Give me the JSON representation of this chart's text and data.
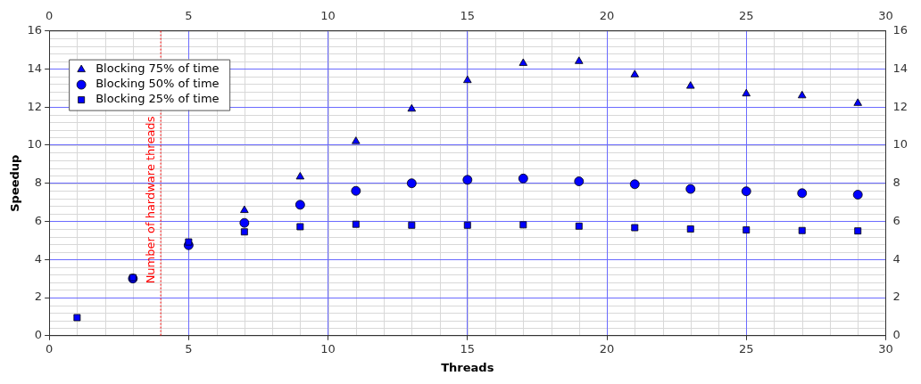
{
  "chart_data": {
    "type": "scatter",
    "xlabel": "Threads",
    "ylabel": "Speedup",
    "x": [
      1,
      3,
      5,
      7,
      9,
      11,
      13,
      15,
      17,
      19,
      21,
      23,
      25,
      27,
      29
    ],
    "xlim": [
      0,
      30
    ],
    "xticks": [
      0,
      5,
      10,
      15,
      20,
      25,
      30
    ],
    "x2lim": [
      0,
      30
    ],
    "x2ticks": [
      0,
      5,
      10,
      15,
      20,
      25,
      30
    ],
    "ylim": [
      0,
      16
    ],
    "yticks": [
      0,
      2,
      4,
      6,
      8,
      10,
      12,
      14,
      16
    ],
    "y2lim": [
      0,
      16
    ],
    "y2ticks": [
      0,
      2,
      4,
      6,
      8,
      10,
      12,
      14,
      16
    ],
    "grid": true,
    "legend": "top left",
    "series": [
      {
        "name": "Blocking 75% of time",
        "color": "#0000ff",
        "marker": "triangle",
        "values": [
          null,
          null,
          null,
          6.58,
          8.34,
          10.2,
          11.9,
          13.4,
          14.3,
          14.4,
          13.7,
          13.1,
          12.7,
          12.6,
          12.2
        ]
      },
      {
        "name": "Blocking 50% of time",
        "color": "#0000ff",
        "marker": "circle",
        "values": [
          null,
          3.0,
          4.75,
          5.92,
          6.87,
          7.6,
          8.0,
          8.18,
          8.25,
          8.1,
          7.95,
          7.7,
          7.58,
          7.48,
          7.4
        ]
      },
      {
        "name": "Blocking 25% of time",
        "color": "#0000ff",
        "marker": "square",
        "values": [
          0.95,
          3.05,
          4.92,
          5.45,
          5.72,
          5.85,
          5.8,
          5.8,
          5.82,
          5.75,
          5.67,
          5.6,
          5.55,
          5.52,
          5.5
        ]
      }
    ],
    "ref_lines": [
      {
        "axis": "x",
        "value": 4,
        "label": "Number of hardware threads",
        "color": "#ff0000",
        "line_style": "dotted"
      }
    ]
  }
}
